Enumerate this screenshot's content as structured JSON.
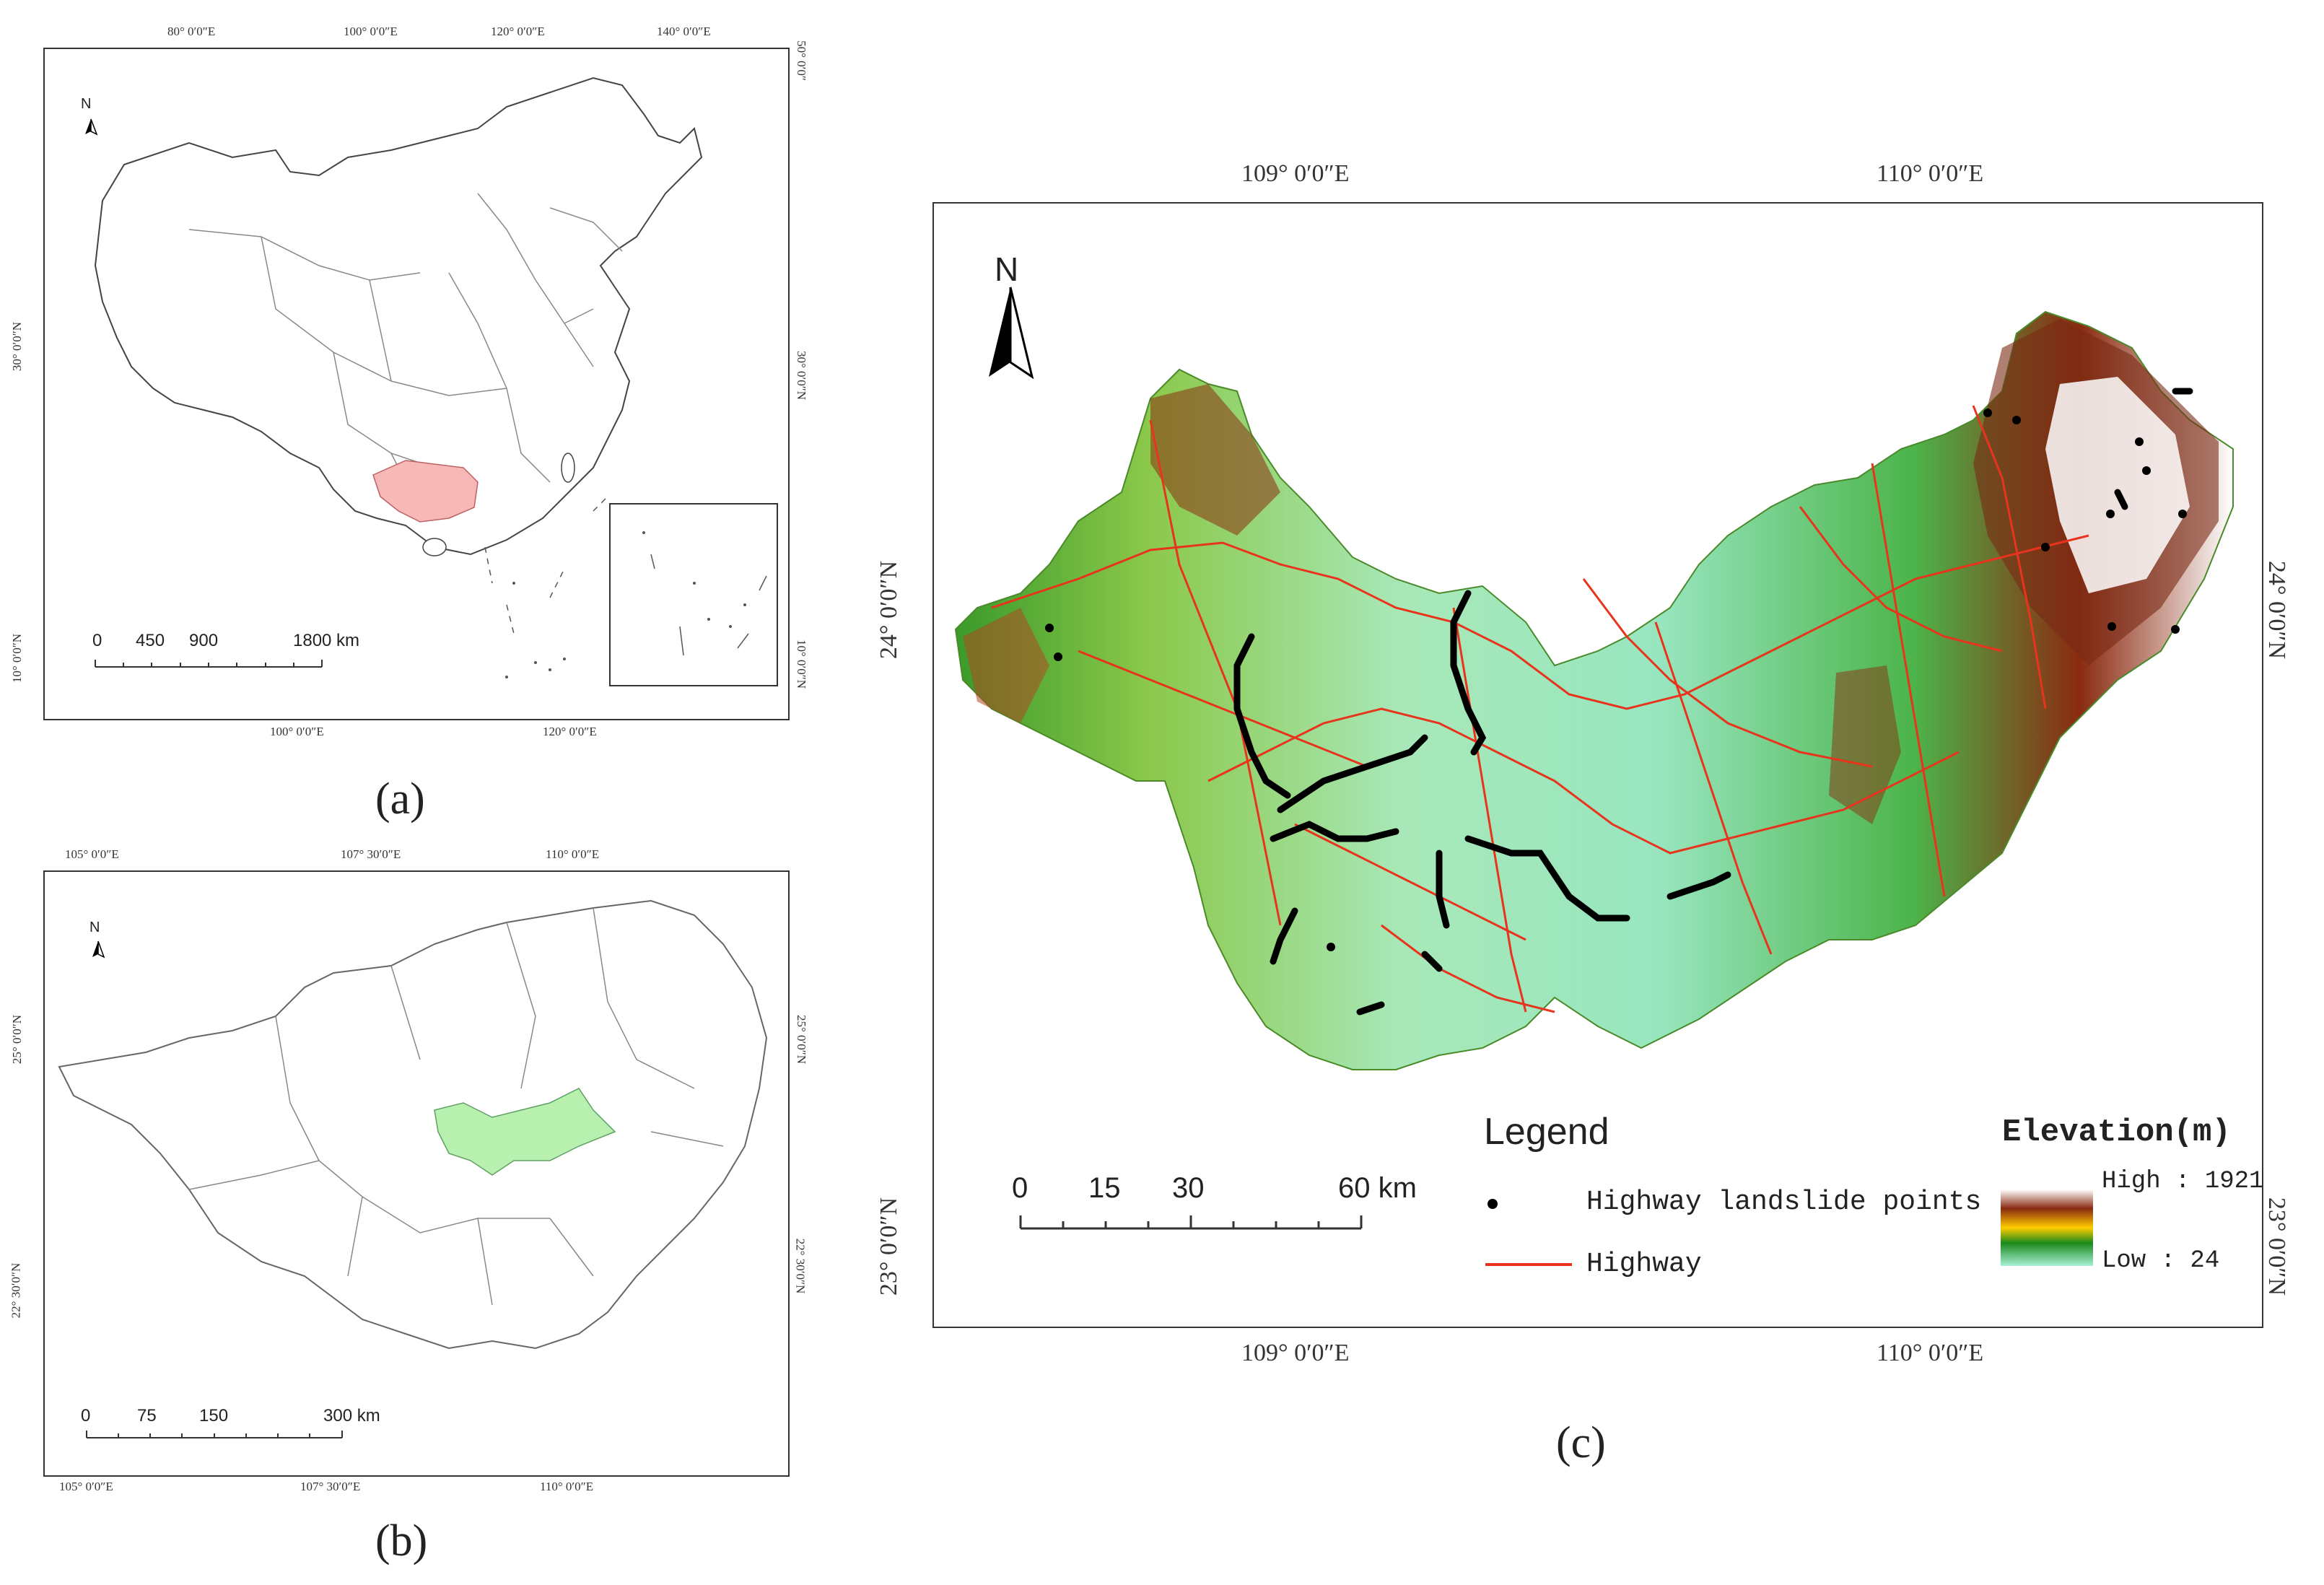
{
  "panel_a": {
    "caption": "(a)",
    "top_lon": [
      "80° 0′0″E",
      "100° 0′0″E",
      "120° 0′0″E",
      "140° 0′0″E"
    ],
    "bottom_lon": [
      "100° 0′0″E",
      "120° 0′0″E"
    ],
    "left_lat": [
      "30° 0′0″N",
      "10° 0′0″N"
    ],
    "right_lat": [
      "50° 0′0″",
      "30° 0′0″N",
      "10° 0′0″N"
    ],
    "north": "N",
    "scale_labels": [
      "0",
      "450",
      "900",
      "1800 km"
    ],
    "highlight_color": "#f7b8b8"
  },
  "panel_b": {
    "caption": "(b)",
    "top_lon": [
      "105° 0′0″E",
      "107° 30′0″E",
      "110° 0′0″E"
    ],
    "bottom_lon": [
      "105° 0′0″E",
      "107° 30′0″E",
      "110° 0′0″E"
    ],
    "left_lat": [
      "25° 0′0″N",
      "22° 30′0″N"
    ],
    "right_lat": [
      "25° 0′0″N",
      "22° 30′0″N"
    ],
    "north": "N",
    "scale_labels": [
      "0",
      "75",
      "150",
      "300 km"
    ],
    "highlight_color": "#b8f0b0"
  },
  "panel_c": {
    "caption": "(c)",
    "top_lon": [
      "109° 0′0″E",
      "110° 0′0″E"
    ],
    "bottom_lon": [
      "109° 0′0″E",
      "110° 0′0″E"
    ],
    "left_lat": [
      "24° 0′0″N",
      "23° 0′0″N"
    ],
    "right_lat": [
      "24° 0′0″N",
      "23° 0′0″N"
    ],
    "north": "N",
    "scale_labels": [
      "0",
      "15",
      "30",
      "60 km"
    ],
    "legend": {
      "title": "Legend",
      "points_label": "Highway landslide points",
      "highway_label": "Highway",
      "highway_color": "#e8341c",
      "elevation_title": "Elevation(m)",
      "high_label": "High : 1921",
      "low_label": "Low  : 24"
    }
  }
}
